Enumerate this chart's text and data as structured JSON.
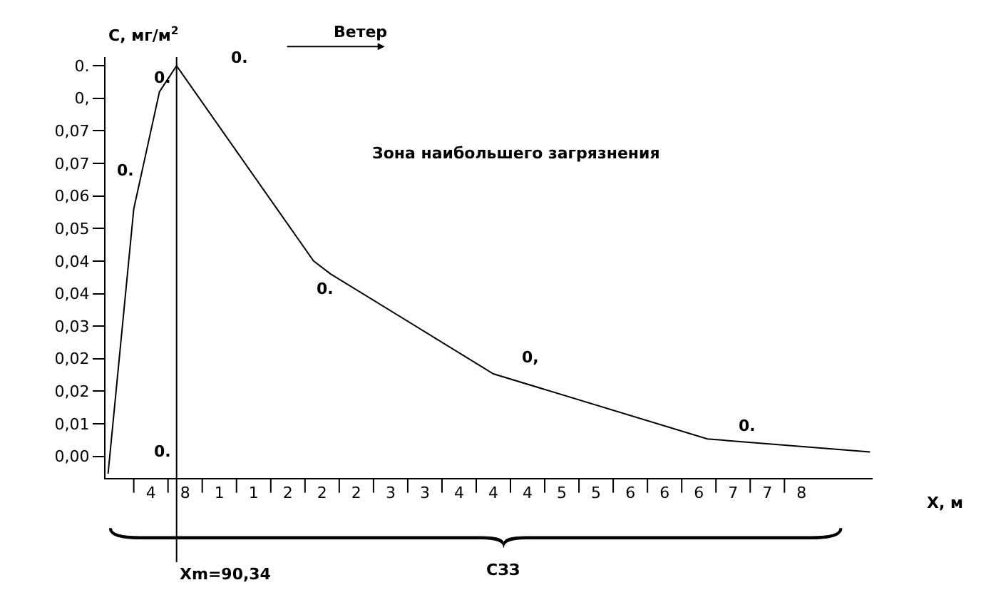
{
  "chart_data": {
    "type": "line",
    "ylabel": "C, мг/м$^{2}$",
    "xlabel": "X, м",
    "categories": [
      null,
      null,
      null,
      null,
      null,
      "4",
      null,
      null,
      null,
      "8",
      null,
      null,
      null,
      "1",
      null,
      null,
      null,
      "1",
      null,
      null,
      null,
      "2",
      null,
      null,
      null,
      "2",
      null,
      null,
      null,
      "2",
      null,
      null,
      null,
      "3",
      null,
      null,
      null,
      "3",
      null,
      null,
      null,
      "4",
      null,
      null,
      null,
      "4",
      null,
      null,
      null,
      "4",
      null,
      null,
      null,
      "5",
      null,
      null,
      null,
      "5",
      null,
      null,
      null,
      "6",
      null,
      null,
      null,
      "6",
      null,
      null,
      null,
      "6",
      null,
      null,
      null,
      "7",
      null,
      null,
      null,
      "7",
      null,
      null,
      null,
      "8",
      null,
      null,
      null,
      null,
      null,
      null,
      null,
      null
    ],
    "series": [
      {
        "color": "#000000",
        "values": [
          -0.004,
          null,
          null,
          0.057,
          0.066,
          null,
          0.084,
          0.087,
          0.09,
          null,
          null,
          null,
          null,
          null,
          null,
          null,
          null,
          null,
          null,
          null,
          null,
          null,
          null,
          null,
          0.045,
          null,
          0.042,
          null,
          null,
          null,
          null,
          null,
          null,
          null,
          null,
          null,
          null,
          null,
          null,
          null,
          null,
          null,
          null,
          null,
          null,
          0.019,
          null,
          null,
          null,
          null,
          null,
          null,
          null,
          null,
          null,
          null,
          null,
          null,
          null,
          null,
          null,
          null,
          null,
          null,
          null,
          null,
          null,
          null,
          null,
          null,
          0.004,
          null,
          null,
          null,
          null,
          null,
          null,
          null,
          null,
          null,
          null,
          null,
          null,
          null,
          null,
          null,
          null,
          null,
          null,
          0.001
        ]
      }
    ],
    "ylim": [
      -0.005,
      0.092
    ],
    "yticks": [
      {
        "value": 0,
        "label": "0,00"
      },
      {
        "value": 0.0075,
        "label": "0,01"
      },
      {
        "value": 0.015,
        "label": "0,02"
      },
      {
        "value": 0.0225,
        "label": "0,02"
      },
      {
        "value": 0.03,
        "label": "0,03"
      },
      {
        "value": 0.0375,
        "label": "0,04"
      },
      {
        "value": 0.045,
        "label": "0,04"
      },
      {
        "value": 0.0525,
        "label": "0,05"
      },
      {
        "value": 0.06,
        "label": "0,06"
      },
      {
        "value": 0.0675,
        "label": "0,07"
      },
      {
        "value": 0.075,
        "label": "0,07"
      },
      {
        "value": 0.0825,
        "label": "0,"
      },
      {
        "value": 0.09,
        "label": "0."
      }
    ],
    "ref_lines": [
      {
        "axis": "x",
        "label": "Xm=90,34",
        "color": "#000000"
      }
    ],
    "annotations": [
      "0.",
      "0.",
      "0.",
      "0.",
      "0,",
      "0.",
      "0.",
      "Ветер",
      "Зона наибольшего загрязнения",
      "СЗЗ"
    ],
    "legend": false,
    "marker": "none",
    "line_style": "solid"
  }
}
